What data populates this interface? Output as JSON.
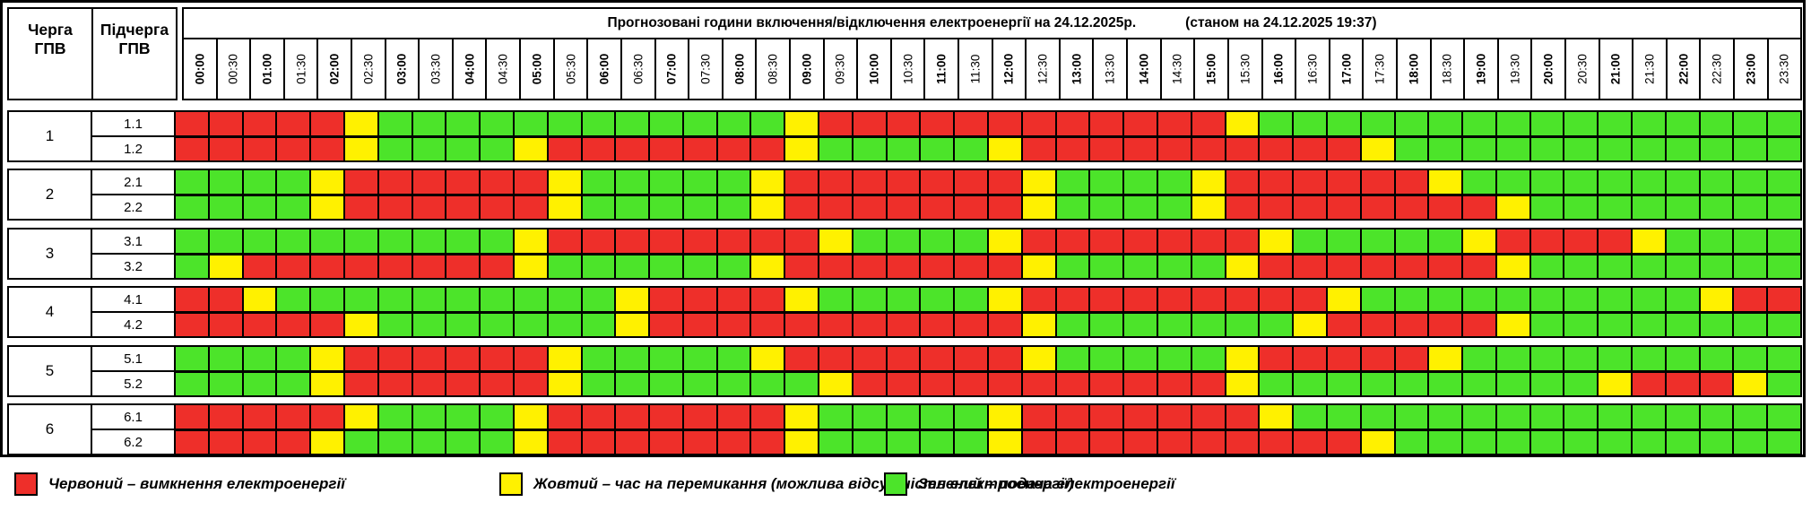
{
  "header": {
    "title": "Прогнозовані години включення/відключення електроенергії на 24.12.2025р.",
    "status": "(станом на 24.12.2025 19:37)",
    "queue_col": "Черга ГПВ",
    "subqueue_col": "Підчерга ГПВ"
  },
  "colors_map": {
    "R": "#EE2F2A",
    "Y": "#FFF100",
    "G": "#4CE42A"
  },
  "chart_data": {
    "type": "heatmap",
    "title": "Прогнозовані години включення/відключення електроенергії на 24.12.2025р.",
    "status": "(станом на 24.12.2025 19:37)",
    "x_label": "час доби (крок 30 хв)",
    "times": [
      "00:00",
      "00:30",
      "01:00",
      "01:30",
      "02:00",
      "02:30",
      "03:00",
      "03:30",
      "04:00",
      "04:30",
      "05:00",
      "05:30",
      "06:00",
      "06:30",
      "07:00",
      "07:30",
      "08:00",
      "08:30",
      "09:00",
      "09:30",
      "10:00",
      "10:30",
      "11:00",
      "11:30",
      "12:00",
      "12:30",
      "13:00",
      "13:30",
      "14:00",
      "14:30",
      "15:00",
      "15:30",
      "16:00",
      "16:30",
      "17:00",
      "17:30",
      "18:00",
      "18:30",
      "19:00",
      "19:30",
      "20:00",
      "20:30",
      "21:00",
      "21:30",
      "22:00",
      "22:30",
      "23:00",
      "23:30"
    ],
    "value_meanings": {
      "R": "вимкнення електроенергії",
      "Y": "час на перемикання (можлива відсутність електроенергії)",
      "G": "подача електроенергії"
    },
    "groups": [
      {
        "queue": "1",
        "rows": [
          {
            "label": "1.1",
            "cells": "RRRRRYGGGGGGGGGGGGYRRRRRRRRRRRRYGGGGGGGGGGGGGGGG"
          },
          {
            "label": "1.2",
            "cells": "RRRRRYGGGGYRRRRRRRYGGGGGYRRRRRRRRRRYGGGGGGGGGGGG"
          }
        ]
      },
      {
        "queue": "2",
        "rows": [
          {
            "label": "2.1",
            "cells": "GGGGYRRRRRRYGGGGGYRRRRRRRYGGGGYRRRRRRYGGGGGGGGGG"
          },
          {
            "label": "2.2",
            "cells": "GGGGYRRRRRRYGGGGGYRRRRRRRYGGGGYRRRRRRRRYGGGGGGGG"
          }
        ]
      },
      {
        "queue": "3",
        "rows": [
          {
            "label": "3.1",
            "cells": "GGGGGGGGGGYRRRRRRRRYGGGGYRRRRRRRYGGGGGYRRRRYGGGG"
          },
          {
            "label": "3.2",
            "cells": "GYRRRRRRRRYGGGGGGYRRRRRRRYGGGGGYRRRRRRRYGGGGGGGG"
          }
        ]
      },
      {
        "queue": "4",
        "rows": [
          {
            "label": "4.1",
            "cells": "RRYGGGGGGGGGGYRRRRYGGGGGYRRRRRRRRRYGGGGGGGGGGYRR"
          },
          {
            "label": "4.2",
            "cells": "RRRRRYGGGGGGGYRRRRRRRRRRRYGGGGGGGYRRRRRYGGGGGGGG"
          }
        ]
      },
      {
        "queue": "5",
        "rows": [
          {
            "label": "5.1",
            "cells": "GGGGYRRRRRRYGGGGGYRRRRRRRYGGGGGYRRRRRYGGGGGGGGGG"
          },
          {
            "label": "5.2",
            "cells": "GGGGYRRRRRRYGGGGGGGYRRRRRRRRRRRYGGGGGGGGGGYRRRYG"
          }
        ]
      },
      {
        "queue": "6",
        "rows": [
          {
            "label": "6.1",
            "cells": "RRRRRYGGGGYRRRRRRRYGGGGGYRRRRRRRYGGGGGGGGGGGGGGG"
          },
          {
            "label": "6.2",
            "cells": "RRRRYGGGGGYRRRRRRRYGGGGGYRRRRRRRRRRYGGGGGGGGGGGG"
          }
        ]
      }
    ]
  },
  "legend": {
    "items": [
      {
        "key": "R",
        "color": "#EE2F2A",
        "label": "Червоний – вимкнення електроенергії"
      },
      {
        "key": "Y",
        "color": "#FFF100",
        "label": "Жовтий – час на перемикання (можлива відсутність електроенергії)"
      },
      {
        "key": "G",
        "color": "#4CE42A",
        "label": "Зелений – подача електроенергії"
      }
    ]
  }
}
